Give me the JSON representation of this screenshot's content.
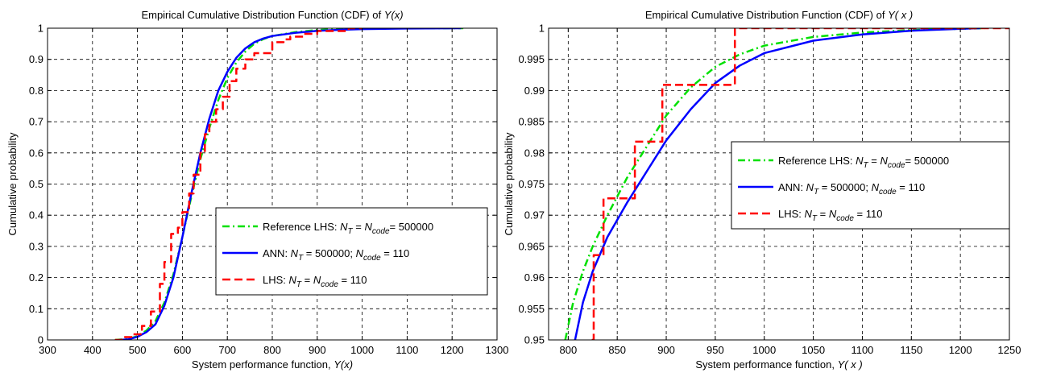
{
  "chart_data": [
    {
      "type": "line",
      "title": "Empirical Cumulative Distribution Function (CDF) of ",
      "title_math": "Y(x)",
      "xlabel": "System performance function, ",
      "xlabel_math": "Y(x)",
      "ylabel": "Cumulative probability",
      "xlim": [
        300,
        1300
      ],
      "ylim": [
        0,
        1
      ],
      "xticks": [
        "300",
        "400",
        "500",
        "600",
        "700",
        "800",
        "900",
        "1000",
        "1100",
        "1200",
        "1300"
      ],
      "yticks": [
        "0",
        "0.1",
        "0.2",
        "0.3",
        "0.4",
        "0.5",
        "0.6",
        "0.7",
        "0.8",
        "0.9",
        "1"
      ],
      "grid": true,
      "legend_position": "center-right",
      "series": [
        {
          "name": "Reference LHS: N_T = N_code = 500000",
          "legend_parts": [
            "Reference LHS: ",
            "N",
            "T",
            " = ",
            "N",
            "code",
            "= 500000"
          ],
          "color": "#00e000",
          "style": "dashdot",
          "step": false,
          "x": [
            450,
            480,
            500,
            520,
            540,
            560,
            580,
            600,
            620,
            640,
            660,
            680,
            700,
            720,
            740,
            760,
            780,
            800,
            850,
            900,
            950,
            1000,
            1100,
            1225
          ],
          "y": [
            0.0,
            0.003,
            0.012,
            0.03,
            0.06,
            0.12,
            0.21,
            0.33,
            0.46,
            0.58,
            0.68,
            0.77,
            0.84,
            0.89,
            0.925,
            0.95,
            0.965,
            0.975,
            0.987,
            0.9945,
            0.997,
            0.9985,
            0.9995,
            1.0
          ]
        },
        {
          "name": "ANN: N_T = 500000; N_code = 110",
          "legend_parts": [
            "ANN: ",
            "N",
            "T",
            " = 500000; ",
            "N",
            "code",
            " = 110"
          ],
          "color": "#0000ff",
          "style": "solid",
          "step": false,
          "x": [
            460,
            480,
            500,
            520,
            540,
            560,
            580,
            600,
            620,
            640,
            660,
            680,
            700,
            720,
            740,
            760,
            780,
            800,
            850,
            900,
            950,
            1000,
            1100,
            1220
          ],
          "y": [
            0.0,
            0.002,
            0.01,
            0.025,
            0.05,
            0.11,
            0.2,
            0.33,
            0.47,
            0.6,
            0.71,
            0.8,
            0.86,
            0.905,
            0.935,
            0.955,
            0.967,
            0.975,
            0.985,
            0.9915,
            0.995,
            0.997,
            0.999,
            1.0
          ]
        },
        {
          "name": "LHS: N_T = N_code = 110",
          "legend_parts": [
            "LHS: ",
            "N",
            "T",
            " = ",
            "N",
            "code",
            " = 110"
          ],
          "color": "#ff0000",
          "style": "dashed",
          "step": true,
          "x": [
            450,
            470,
            490,
            510,
            530,
            550,
            560,
            575,
            590,
            600,
            615,
            625,
            640,
            650,
            660,
            675,
            690,
            705,
            720,
            740,
            760,
            780,
            800,
            825,
            840,
            870,
            900,
            970,
            1000
          ],
          "y": [
            0.0,
            0.0091,
            0.018,
            0.045,
            0.091,
            0.18,
            0.25,
            0.34,
            0.36,
            0.41,
            0.47,
            0.53,
            0.6,
            0.66,
            0.7,
            0.74,
            0.78,
            0.83,
            0.87,
            0.9,
            0.92,
            0.92,
            0.955,
            0.964,
            0.973,
            0.982,
            0.991,
            1.0,
            1.0
          ]
        }
      ]
    },
    {
      "type": "line",
      "title": "Empirical Cumulative Distribution Function (CDF) of ",
      "title_math": "Y( x )",
      "xlabel": "System performance function, ",
      "xlabel_math": "Y( x )",
      "ylabel": "Cumulative probability",
      "xlim": [
        780,
        1250
      ],
      "ylim": [
        0.95,
        1
      ],
      "xticks": [
        "800",
        "850",
        "900",
        "950",
        "1000",
        "1050",
        "1100",
        "1150",
        "1200",
        "1250"
      ],
      "xtick_values": [
        800,
        850,
        900,
        950,
        1000,
        1050,
        1100,
        1150,
        1200,
        1250
      ],
      "yticks": [
        "0.95",
        "0.955",
        "0.96",
        "0.965",
        "0.97",
        "0.975",
        "0.98",
        "0.985",
        "0.99",
        "0.995",
        "1"
      ],
      "grid": true,
      "legend_position": "center-right",
      "series": [
        {
          "name": "Reference LHS: N_T = N_code = 500000",
          "legend_parts": [
            "Reference LHS: ",
            "N",
            "T",
            " = ",
            "N",
            "code",
            "= 500000"
          ],
          "color": "#00e000",
          "style": "dashdot",
          "step": false,
          "x": [
            797,
            805,
            815,
            825,
            840,
            860,
            880,
            900,
            925,
            950,
            975,
            1000,
            1050,
            1100,
            1150,
            1200,
            1225
          ],
          "y": [
            0.95,
            0.956,
            0.961,
            0.965,
            0.97,
            0.976,
            0.981,
            0.986,
            0.9905,
            0.9938,
            0.9958,
            0.9972,
            0.9986,
            0.9993,
            0.9997,
            0.9999,
            1.0
          ]
        },
        {
          "name": "ANN: N_T = 500000; N_code = 110",
          "legend_parts": [
            "ANN: ",
            "N",
            "T",
            " = 500000; ",
            "N",
            "code",
            " = 110"
          ],
          "color": "#0000ff",
          "style": "solid",
          "step": false,
          "x": [
            807,
            815,
            825,
            840,
            860,
            880,
            900,
            925,
            950,
            975,
            1000,
            1050,
            1100,
            1150,
            1200,
            1220
          ],
          "y": [
            0.95,
            0.956,
            0.961,
            0.9665,
            0.972,
            0.977,
            0.982,
            0.987,
            0.9912,
            0.994,
            0.996,
            0.998,
            0.999,
            0.9996,
            0.9999,
            1.0
          ]
        },
        {
          "name": "LHS: N_T = N_code = 110",
          "legend_parts": [
            "LHS: ",
            "N",
            "T",
            " = ",
            "N",
            "code",
            " = 110"
          ],
          "color": "#ff0000",
          "style": "dashed",
          "step": true,
          "x": [
            824,
            826,
            836,
            868,
            896,
            970,
            1250
          ],
          "y": [
            0.95,
            0.9636,
            0.9727,
            0.9818,
            0.9909,
            1.0,
            1.0
          ]
        }
      ]
    }
  ]
}
